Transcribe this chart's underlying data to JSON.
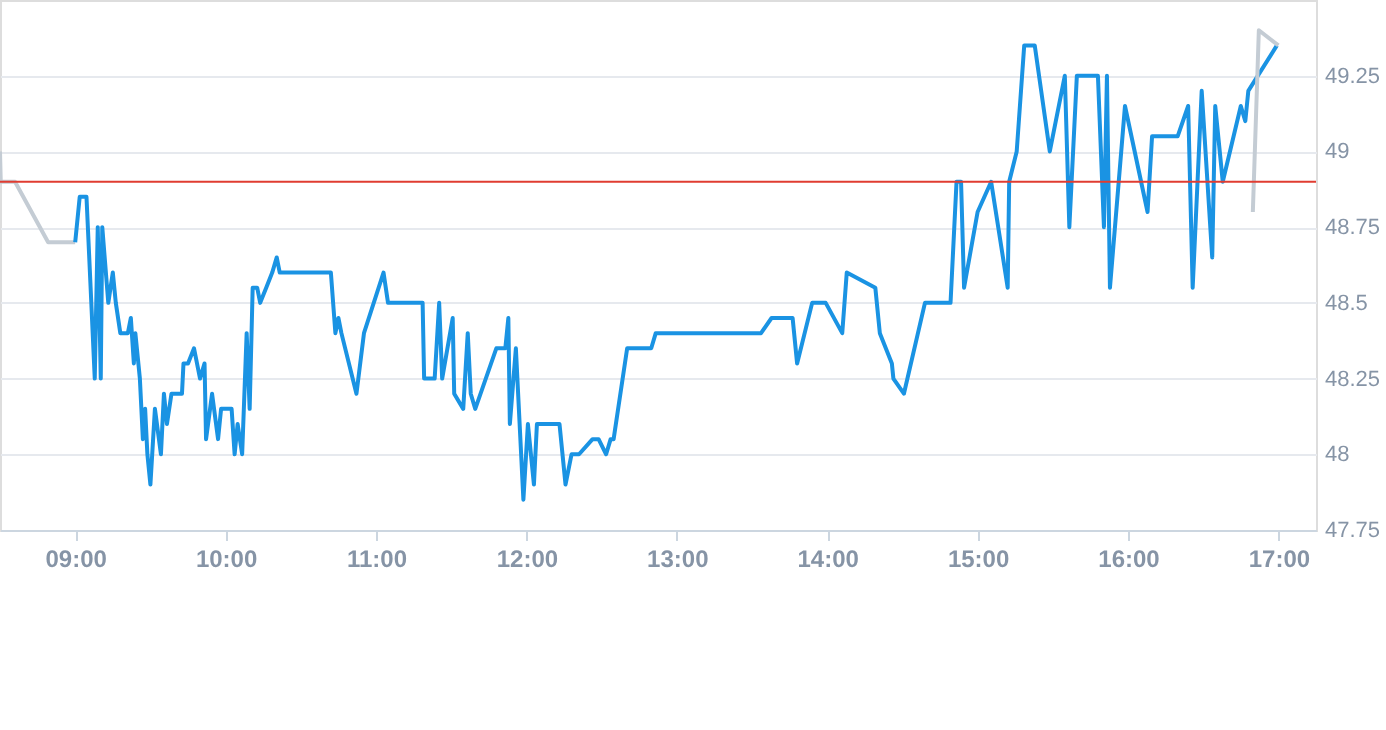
{
  "chart_data": {
    "type": "line",
    "xlim": [
      8.5,
      17.25
    ],
    "ylim": [
      47.75,
      49.5
    ],
    "xticks": [
      {
        "value": 9,
        "label": "09:00"
      },
      {
        "value": 10,
        "label": "10:00"
      },
      {
        "value": 11,
        "label": "11:00"
      },
      {
        "value": 12,
        "label": "12:00"
      },
      {
        "value": 13,
        "label": "13:00"
      },
      {
        "value": 14,
        "label": "14:00"
      },
      {
        "value": 15,
        "label": "15:00"
      },
      {
        "value": 16,
        "label": "16:00"
      },
      {
        "value": 17,
        "label": "17:00"
      }
    ],
    "yticks": [
      47.75,
      48,
      48.25,
      48.5,
      48.75,
      49,
      49.25
    ],
    "grid": "y",
    "marker": "none",
    "line_style": "solid",
    "ref_lines": [
      {
        "axis": "y",
        "value": 48.9,
        "color": "#e03c31"
      }
    ],
    "series": [
      {
        "color": "#c4ccd4",
        "x": [
          8.5,
          8.505,
          8.6,
          8.82,
          9.0
        ],
        "values": [
          49.0,
          48.9,
          48.9,
          48.7,
          48.7
        ]
      },
      {
        "color": "#1a93e3",
        "x": [
          9.0,
          9.03,
          9.075,
          9.13,
          9.15,
          9.17,
          9.18,
          9.22,
          9.25,
          9.27,
          9.3,
          9.35,
          9.37,
          9.39,
          9.4,
          9.43,
          9.45,
          9.465,
          9.48,
          9.5,
          9.53,
          9.57,
          9.59,
          9.61,
          9.64,
          9.66,
          9.71,
          9.72,
          9.75,
          9.79,
          9.83,
          9.86,
          9.87,
          9.91,
          9.95,
          9.97,
          10.04,
          10.06,
          10.08,
          10.11,
          10.14,
          10.16,
          10.18,
          10.21,
          10.23,
          10.27,
          10.31,
          10.34,
          10.36,
          10.7,
          10.73,
          10.75,
          10.77,
          10.87,
          10.92,
          11.05,
          11.08,
          11.31,
          11.32,
          11.39,
          11.42,
          11.44,
          11.51,
          11.52,
          11.58,
          11.61,
          11.63,
          11.66,
          11.8,
          11.86,
          11.88,
          11.89,
          11.93,
          11.98,
          12.01,
          12.05,
          12.07,
          12.22,
          12.26,
          12.3,
          12.35,
          12.44,
          12.48,
          12.53,
          12.56,
          12.58,
          12.67,
          12.83,
          12.86,
          13.56,
          13.63,
          13.77,
          13.8,
          13.9,
          13.99,
          14.1,
          14.13,
          14.32,
          14.35,
          14.43,
          14.44,
          14.51,
          14.65,
          14.82,
          14.86,
          14.89,
          14.91,
          15.0,
          15.09,
          15.2,
          15.21,
          15.26,
          15.31,
          15.38,
          15.48,
          15.58,
          15.61,
          15.66,
          15.8,
          15.84,
          15.86,
          15.88,
          15.98,
          16.13,
          16.16,
          16.33,
          16.4,
          16.43,
          16.49,
          16.56,
          16.58,
          16.63,
          16.75,
          16.78,
          16.8,
          16.99
        ],
        "values": [
          48.7,
          48.85,
          48.85,
          48.25,
          48.75,
          48.25,
          48.75,
          48.5,
          48.6,
          48.5,
          48.4,
          48.4,
          48.45,
          48.3,
          48.4,
          48.25,
          48.05,
          48.15,
          48.0,
          47.9,
          48.15,
          48.0,
          48.2,
          48.1,
          48.2,
          48.2,
          48.2,
          48.3,
          48.3,
          48.35,
          48.25,
          48.3,
          48.05,
          48.2,
          48.05,
          48.15,
          48.15,
          48.0,
          48.1,
          48.0,
          48.4,
          48.15,
          48.55,
          48.55,
          48.5,
          48.55,
          48.6,
          48.65,
          48.6,
          48.6,
          48.4,
          48.45,
          48.4,
          48.2,
          48.4,
          48.6,
          48.5,
          48.5,
          48.25,
          48.25,
          48.5,
          48.25,
          48.45,
          48.2,
          48.15,
          48.4,
          48.2,
          48.15,
          48.35,
          48.35,
          48.45,
          48.1,
          48.35,
          47.85,
          48.1,
          47.9,
          48.1,
          48.1,
          47.9,
          48.0,
          48.0,
          48.05,
          48.05,
          48.0,
          48.05,
          48.05,
          48.35,
          48.35,
          48.4,
          48.4,
          48.45,
          48.45,
          48.3,
          48.5,
          48.5,
          48.4,
          48.6,
          48.55,
          48.4,
          48.3,
          48.25,
          48.2,
          48.5,
          48.5,
          48.9,
          48.9,
          48.55,
          48.8,
          48.9,
          48.55,
          48.9,
          49.0,
          49.35,
          49.35,
          49.0,
          49.25,
          48.75,
          49.25,
          49.25,
          48.75,
          49.25,
          48.55,
          49.15,
          48.8,
          49.05,
          49.05,
          49.15,
          48.55,
          49.2,
          48.65,
          49.15,
          48.9,
          49.15,
          49.1,
          49.2,
          49.35
        ]
      },
      {
        "color": "#c4ccd4",
        "x": [
          16.83,
          16.87,
          17.0
        ],
        "values": [
          48.8,
          49.4,
          49.35
        ]
      }
    ]
  }
}
